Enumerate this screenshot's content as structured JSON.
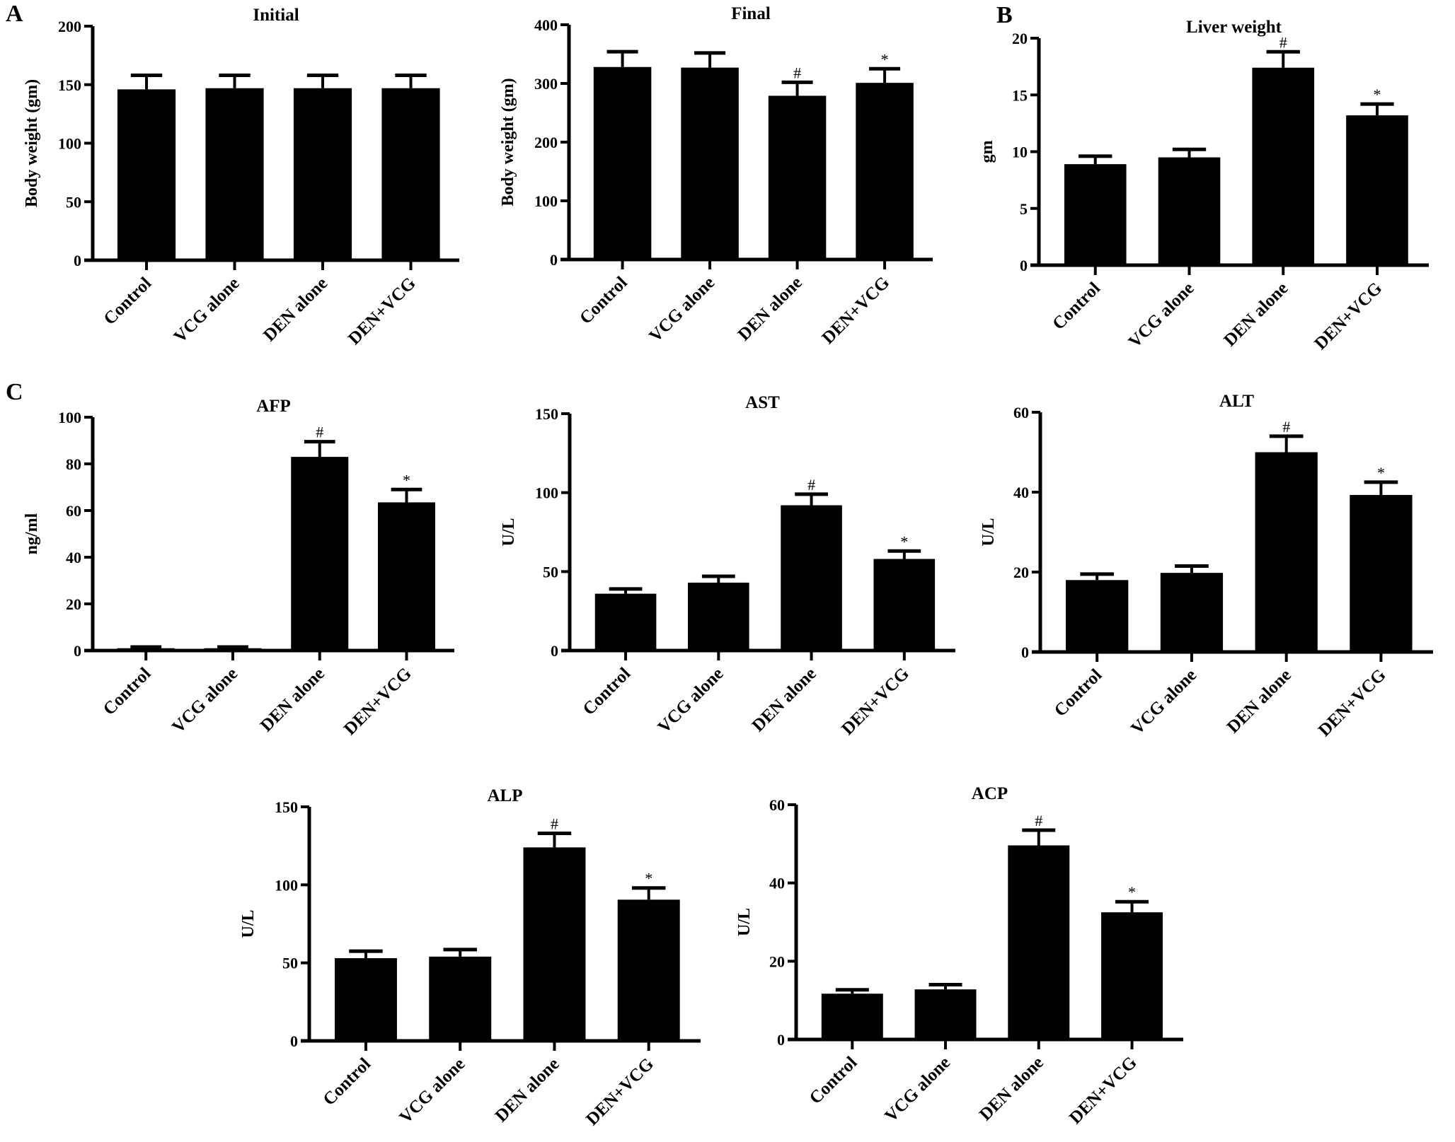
{
  "panels": [
    "A",
    "B",
    "C"
  ],
  "chart_data": [
    {
      "type": "bar",
      "panel": "A",
      "title": "Initial",
      "ylabel": "Body weight (gm)",
      "ylim": [
        0,
        200
      ],
      "yticks": [
        0,
        50,
        100,
        150,
        200
      ],
      "categories": [
        "Control",
        "VCG alone",
        "DEN alone",
        "DEN+VCG"
      ],
      "values": [
        146,
        147,
        147,
        147
      ],
      "errors": [
        12,
        11,
        11,
        11
      ],
      "marks": [
        "",
        "",
        "",
        ""
      ]
    },
    {
      "type": "bar",
      "title": "Final",
      "ylabel": "Body weight (gm)",
      "ylim": [
        0,
        400
      ],
      "yticks": [
        0,
        100,
        200,
        300,
        400
      ],
      "categories": [
        "Control",
        "VCG alone",
        "DEN alone",
        "DEN+VCG"
      ],
      "values": [
        328,
        327,
        279,
        301
      ],
      "errors": [
        26,
        25,
        23,
        24
      ],
      "marks": [
        "",
        "",
        "#",
        "*"
      ]
    },
    {
      "type": "bar",
      "panel": "B",
      "title": "Liver weight",
      "ylabel": "gm",
      "ylim": [
        0,
        20
      ],
      "yticks": [
        0,
        5,
        10,
        15,
        20
      ],
      "categories": [
        "Control",
        "VCG alone",
        "DEN alone",
        "DEN+VCG"
      ],
      "values": [
        8.9,
        9.5,
        17.4,
        13.2
      ],
      "errors": [
        0.7,
        0.7,
        1.4,
        1.0
      ],
      "marks": [
        "",
        "",
        "#",
        "*"
      ]
    },
    {
      "type": "bar",
      "panel": "C",
      "title": "AFP",
      "ylabel": "ng/ml",
      "ylim": [
        0,
        100
      ],
      "yticks": [
        0,
        20,
        40,
        60,
        80,
        100
      ],
      "categories": [
        "Control",
        "VCG alone",
        "DEN alone",
        "DEN+VCG"
      ],
      "values": [
        1,
        1,
        83,
        63.5
      ],
      "errors": [
        0.5,
        0.5,
        6.5,
        5.5
      ],
      "marks": [
        "",
        "",
        "#",
        "*"
      ]
    },
    {
      "type": "bar",
      "title": "AST",
      "ylabel": "U/L",
      "ylim": [
        0,
        150
      ],
      "yticks": [
        0,
        50,
        100,
        150
      ],
      "categories": [
        "Control",
        "VCG alone",
        "DEN alone",
        "DEN+VCG"
      ],
      "values": [
        36,
        43,
        92,
        58
      ],
      "errors": [
        3,
        4,
        7,
        5
      ],
      "marks": [
        "",
        "",
        "#",
        "*"
      ]
    },
    {
      "type": "bar",
      "title": "ALT",
      "ylabel": "U/L",
      "ylim": [
        0,
        60
      ],
      "yticks": [
        0,
        20,
        40,
        60
      ],
      "categories": [
        "Control",
        "VCG alone",
        "DEN alone",
        "DEN+VCG"
      ],
      "values": [
        18,
        19.8,
        50,
        39.3
      ],
      "errors": [
        1.5,
        1.7,
        4,
        3.2
      ],
      "marks": [
        "",
        "",
        "#",
        "*"
      ]
    },
    {
      "type": "bar",
      "title": "ALP",
      "ylabel": "U/L",
      "ylim": [
        0,
        150
      ],
      "yticks": [
        0,
        50,
        100,
        150
      ],
      "categories": [
        "Control",
        "VCG alone",
        "DEN alone",
        "DEN+VCG"
      ],
      "values": [
        53,
        54,
        124,
        90.5
      ],
      "errors": [
        4.5,
        4.5,
        9,
        7.5
      ],
      "marks": [
        "",
        "",
        "#",
        "*"
      ]
    },
    {
      "type": "bar",
      "title": "ACP",
      "ylabel": "U/L",
      "ylim": [
        0,
        60
      ],
      "yticks": [
        0,
        20,
        40,
        60
      ],
      "categories": [
        "Control",
        "VCG alone",
        "DEN alone",
        "DEN+VCG"
      ],
      "values": [
        11.7,
        12.8,
        49.6,
        32.5
      ],
      "errors": [
        1,
        1.2,
        3.9,
        2.7
      ],
      "marks": [
        "",
        "",
        "#",
        "*"
      ]
    }
  ],
  "colors": {
    "bar": "#000000",
    "mark": "#333333"
  }
}
